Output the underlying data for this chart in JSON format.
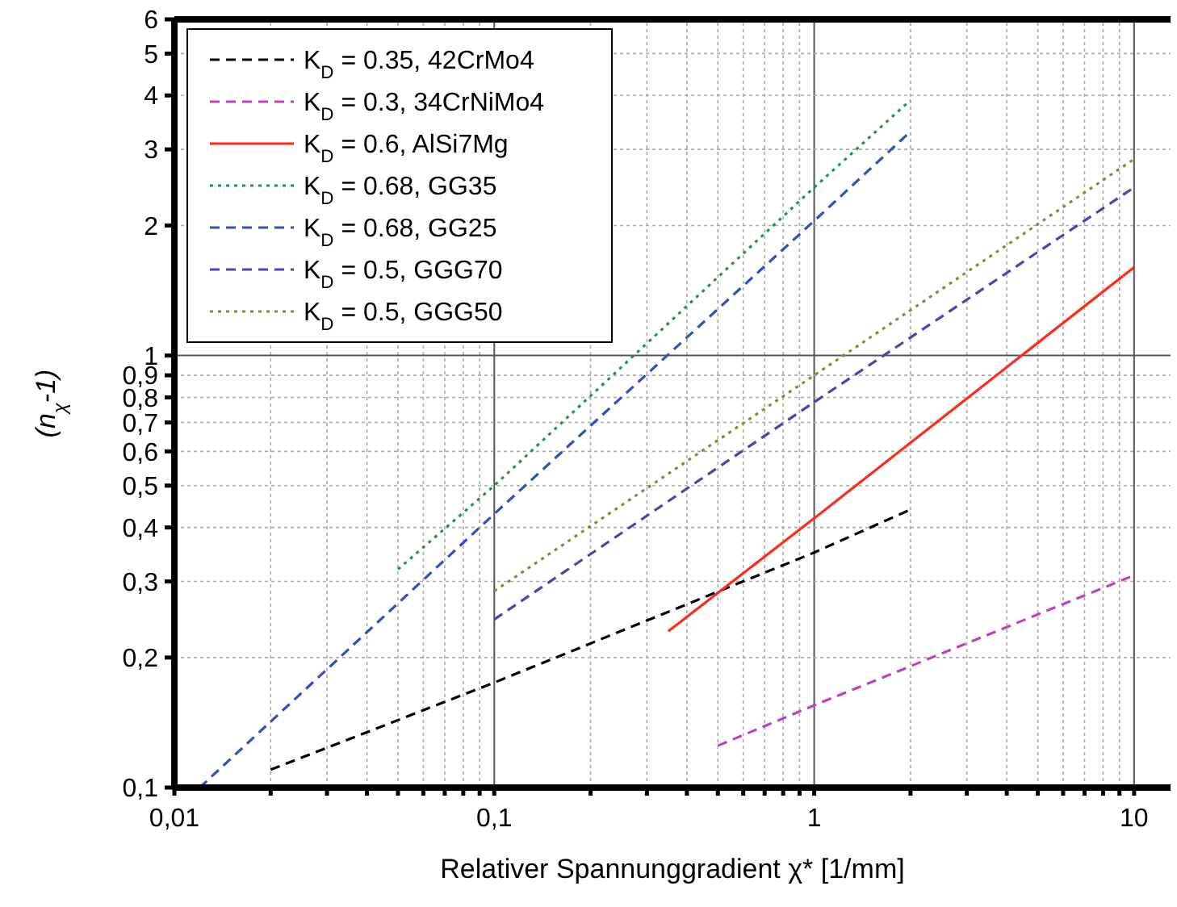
{
  "chart_data": {
    "type": "line",
    "xlabel": "Relativer Spannunggradient χ* [1/mm]",
    "ylabel": "(n$_{χ}$-1)",
    "log": "xy",
    "grid": true,
    "legend": "top left",
    "xlim": [
      0.01,
      13
    ],
    "ylim": [
      0.1,
      6
    ],
    "xticks": [
      {
        "value": 0.01,
        "label": "0,01"
      },
      {
        "value": 0.02,
        "label": null
      },
      {
        "value": 0.03,
        "label": null
      },
      {
        "value": 0.04,
        "label": null
      },
      {
        "value": 0.05,
        "label": null
      },
      {
        "value": 0.06,
        "label": null
      },
      {
        "value": 0.07,
        "label": null
      },
      {
        "value": 0.08,
        "label": null
      },
      {
        "value": 0.09,
        "label": null
      },
      {
        "value": 0.1,
        "label": "0,1"
      },
      {
        "value": 0.2,
        "label": null
      },
      {
        "value": 0.3,
        "label": null
      },
      {
        "value": 0.4,
        "label": null
      },
      {
        "value": 0.5,
        "label": null
      },
      {
        "value": 0.6,
        "label": null
      },
      {
        "value": 0.7,
        "label": null
      },
      {
        "value": 0.8,
        "label": null
      },
      {
        "value": 0.9,
        "label": null
      },
      1,
      {
        "value": 2,
        "label": null
      },
      {
        "value": 3,
        "label": null
      },
      {
        "value": 4,
        "label": null
      },
      {
        "value": 5,
        "label": null
      },
      {
        "value": 6,
        "label": null
      },
      {
        "value": 7,
        "label": null
      },
      {
        "value": 8,
        "label": null
      },
      {
        "value": 9,
        "label": null
      },
      10
    ],
    "yticks": [
      {
        "value": 0.1,
        "label": "0,1"
      },
      {
        "value": 0.2,
        "label": "0,2"
      },
      {
        "value": 0.3,
        "label": "0,3"
      },
      {
        "value": 0.4,
        "label": "0,4"
      },
      {
        "value": 0.5,
        "label": "0,5"
      },
      {
        "value": 0.6,
        "label": "0,6"
      },
      {
        "value": 0.7,
        "label": "0,7"
      },
      {
        "value": 0.8,
        "label": "0,8"
      },
      {
        "value": 0.9,
        "label": "0,9"
      },
      1,
      2,
      3,
      4,
      5,
      6
    ],
    "series": [
      {
        "name": "K$_{D}$ = 0.35, 42CrMo4",
        "color": "#000000",
        "line_style": "dashed",
        "x": [
          0.02,
          0.1,
          1,
          2
        ],
        "values": [
          0.11,
          0.175,
          0.35,
          0.44
        ]
      },
      {
        "name": "K$_{D}$ = 0.3, 34CrNiMo4",
        "color": "#c040c0",
        "line_style": "dashed",
        "x": [
          0.5,
          1,
          10
        ],
        "values": [
          0.125,
          0.155,
          0.31
        ]
      },
      {
        "name": "K$_{D}$ = 0.6, AlSi7Mg",
        "color": "#ff2a1a",
        "line_style": "solid",
        "x": [
          0.35,
          1,
          10
        ],
        "values": [
          0.23,
          0.42,
          1.6
        ]
      },
      {
        "name": "K$_{D}$ = 0.68, GG35",
        "color": "#1a9a4a",
        "line_style": "dotted",
        "x": [
          0.05,
          0.1,
          1,
          2
        ],
        "values": [
          0.32,
          0.5,
          2.45,
          3.9
        ]
      },
      {
        "name": "K$_{D}$ = 0.68, GG25",
        "color": "#3050c0",
        "line_style": "dashed",
        "x": [
          0.012,
          0.1,
          1,
          2
        ],
        "values": [
          0.1,
          0.43,
          2.05,
          3.3
        ]
      },
      {
        "name": "K$_{D}$ = 0.5, GGG70",
        "color": "#5040b0",
        "line_style": "dashed",
        "x": [
          0.1,
          1,
          10
        ],
        "values": [
          0.245,
          0.78,
          2.45
        ]
      },
      {
        "name": "K$_{D}$ = 0.5, GGG50",
        "color": "#8a8a30",
        "line_style": "dotted",
        "x": [
          0.1,
          1,
          10
        ],
        "values": [
          0.285,
          0.9,
          2.85
        ]
      }
    ]
  }
}
